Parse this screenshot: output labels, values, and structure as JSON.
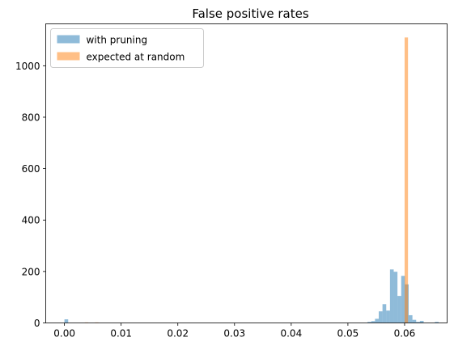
{
  "chart_data": {
    "type": "bar",
    "title": "False positive rates",
    "xlabel": "",
    "ylabel": "",
    "xlim": [
      -0.0033,
      0.0675
    ],
    "ylim": [
      0,
      1163
    ],
    "x_ticks": [
      0.0,
      0.01,
      0.02,
      0.03,
      0.04,
      0.05,
      0.06
    ],
    "x_tick_labels": [
      "0.00",
      "0.01",
      "0.02",
      "0.03",
      "0.04",
      "0.05",
      "0.06"
    ],
    "y_ticks": [
      0,
      200,
      400,
      600,
      800,
      1000
    ],
    "y_tick_labels": [
      "0",
      "200",
      "400",
      "600",
      "800",
      "1000"
    ],
    "grid": false,
    "legend_position": "top-left",
    "series": [
      {
        "name": "with pruning",
        "color": "#1f77b4",
        "opacity": 0.5,
        "bin_width": 0.00066,
        "bins": [
          {
            "x": 0.0,
            "count": 14
          },
          {
            "x": 0.05346,
            "count": 4
          },
          {
            "x": 0.05412,
            "count": 7
          },
          {
            "x": 0.05478,
            "count": 16
          },
          {
            "x": 0.05544,
            "count": 45
          },
          {
            "x": 0.0561,
            "count": 73
          },
          {
            "x": 0.05676,
            "count": 48
          },
          {
            "x": 0.05742,
            "count": 208
          },
          {
            "x": 0.05808,
            "count": 199
          },
          {
            "x": 0.05874,
            "count": 105
          },
          {
            "x": 0.0594,
            "count": 183
          },
          {
            "x": 0.06006,
            "count": 150
          },
          {
            "x": 0.06072,
            "count": 30
          },
          {
            "x": 0.06138,
            "count": 12
          },
          {
            "x": 0.06204,
            "count": 4
          },
          {
            "x": 0.0627,
            "count": 8
          },
          {
            "x": 0.06534,
            "count": 4
          }
        ]
      },
      {
        "name": "expected at random",
        "color": "#ff7f0e",
        "opacity": 0.5,
        "bin_width": 0.0006,
        "bins": [
          {
            "x": 0.0036,
            "count": 2
          },
          {
            "x": 0.0054,
            "count": 2
          },
          {
            "x": 0.06,
            "count": 1110
          }
        ]
      }
    ]
  }
}
